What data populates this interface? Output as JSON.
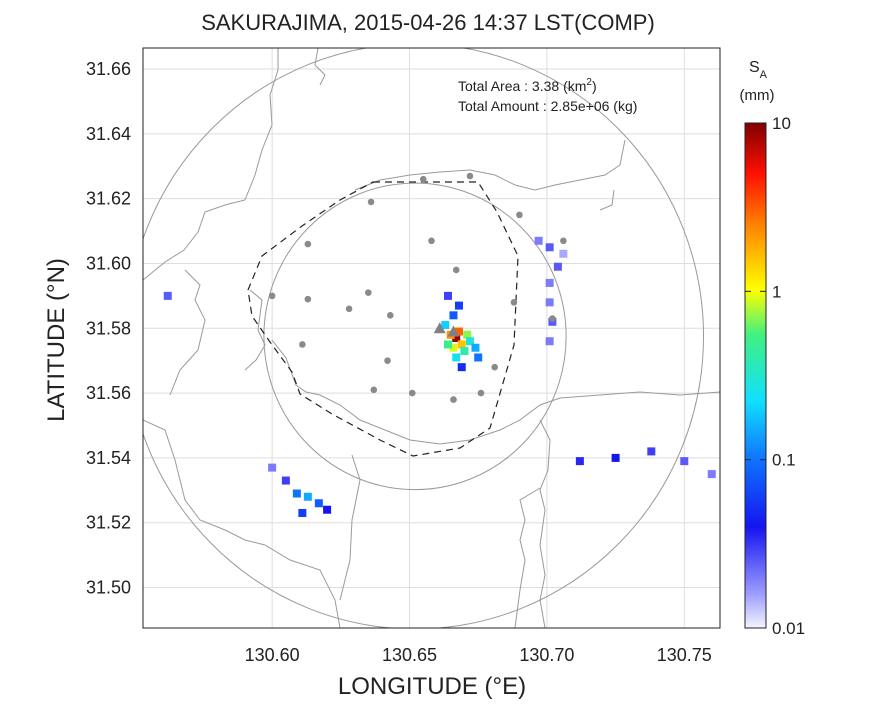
{
  "chart_data": {
    "type": "heatmap",
    "title": "SAKURAJIMA, 2015-04-26 14:37 LST(COMP)",
    "xlabel": "LONGITUDE (°E)",
    "ylabel": "LATITUDE (°N)",
    "xlim": [
      130.553,
      130.763
    ],
    "ylim": [
      31.4875,
      31.6665
    ],
    "xticks": [
      "130.60",
      "130.65",
      "130.70",
      "130.75"
    ],
    "yticks": [
      "31.50",
      "31.52",
      "31.54",
      "31.56",
      "31.58",
      "31.60",
      "31.62",
      "31.64",
      "31.66"
    ],
    "grid": true,
    "annotation": {
      "area_label": "Total Area   : 3.38 (km",
      "area_sup": "2",
      "area_close": ")",
      "amount_label": "Total Amount : 2.85e+06 (kg)"
    },
    "colorbar": {
      "label_main": "S",
      "label_sub": "A",
      "label_unit": "(mm)",
      "scale": "log",
      "range": [
        0.01,
        10
      ],
      "ticks": [
        "10",
        "1",
        "0.1",
        "0.01"
      ],
      "ticks_values": [
        10,
        1,
        0.1,
        0.01
      ]
    },
    "range_rings": [
      {
        "center": [
          130.652,
          31.5775
        ],
        "radius_deg": 0.055
      },
      {
        "center": [
          130.652,
          31.5775
        ],
        "radius_deg": 0.105
      }
    ],
    "stations": [
      [
        130.655,
        31.626
      ],
      [
        130.672,
        31.627
      ],
      [
        130.636,
        31.619
      ],
      [
        130.69,
        31.615
      ],
      [
        130.613,
        31.606
      ],
      [
        130.658,
        31.607
      ],
      [
        130.706,
        31.607
      ],
      [
        130.667,
        31.598
      ],
      [
        130.6,
        31.59
      ],
      [
        130.613,
        31.589
      ],
      [
        130.635,
        31.591
      ],
      [
        130.628,
        31.586
      ],
      [
        130.643,
        31.584
      ],
      [
        130.688,
        31.588
      ],
      [
        130.702,
        31.583
      ],
      [
        130.611,
        31.575
      ],
      [
        130.642,
        31.57
      ],
      [
        130.681,
        31.568
      ],
      [
        130.637,
        31.561
      ],
      [
        130.651,
        31.56
      ],
      [
        130.666,
        31.558
      ],
      [
        130.676,
        31.56
      ]
    ],
    "vents": [
      [
        130.661,
        31.58
      ],
      [
        130.666,
        31.579
      ]
    ],
    "deposits": [
      {
        "lon": 130.667,
        "lat": 31.577,
        "value": 9.0
      },
      {
        "lon": 130.668,
        "lat": 31.579,
        "value": 3.0
      },
      {
        "lon": 130.665,
        "lat": 31.578,
        "value": 2.2
      },
      {
        "lon": 130.669,
        "lat": 31.575,
        "value": 1.6
      },
      {
        "lon": 130.666,
        "lat": 31.574,
        "value": 0.9
      },
      {
        "lon": 130.671,
        "lat": 31.578,
        "value": 0.7
      },
      {
        "lon": 130.664,
        "lat": 31.575,
        "value": 0.5
      },
      {
        "lon": 130.67,
        "lat": 31.573,
        "value": 0.4
      },
      {
        "lon": 130.672,
        "lat": 31.576,
        "value": 0.3
      },
      {
        "lon": 130.667,
        "lat": 31.571,
        "value": 0.25
      },
      {
        "lon": 130.663,
        "lat": 31.581,
        "value": 0.2
      },
      {
        "lon": 130.674,
        "lat": 31.574,
        "value": 0.15
      },
      {
        "lon": 130.666,
        "lat": 31.584,
        "value": 0.08
      },
      {
        "lon": 130.668,
        "lat": 31.587,
        "value": 0.06
      },
      {
        "lon": 130.664,
        "lat": 31.59,
        "value": 0.03
      },
      {
        "lon": 130.669,
        "lat": 31.568,
        "value": 0.05
      },
      {
        "lon": 130.675,
        "lat": 31.571,
        "value": 0.1
      },
      {
        "lon": 130.701,
        "lat": 31.605,
        "value": 0.025
      },
      {
        "lon": 130.704,
        "lat": 31.599,
        "value": 0.025
      },
      {
        "lon": 130.701,
        "lat": 31.594,
        "value": 0.02
      },
      {
        "lon": 130.701,
        "lat": 31.588,
        "value": 0.02
      },
      {
        "lon": 130.702,
        "lat": 31.582,
        "value": 0.025
      },
      {
        "lon": 130.701,
        "lat": 31.576,
        "value": 0.02
      },
      {
        "lon": 130.697,
        "lat": 31.607,
        "value": 0.02
      },
      {
        "lon": 130.706,
        "lat": 31.603,
        "value": 0.015
      },
      {
        "lon": 130.6,
        "lat": 31.537,
        "value": 0.02
      },
      {
        "lon": 130.605,
        "lat": 31.533,
        "value": 0.03
      },
      {
        "lon": 130.609,
        "lat": 31.529,
        "value": 0.1
      },
      {
        "lon": 130.613,
        "lat": 31.528,
        "value": 0.15
      },
      {
        "lon": 130.617,
        "lat": 31.526,
        "value": 0.08
      },
      {
        "lon": 130.62,
        "lat": 31.524,
        "value": 0.04
      },
      {
        "lon": 130.611,
        "lat": 31.523,
        "value": 0.06
      },
      {
        "lon": 130.725,
        "lat": 31.54,
        "value": 0.04
      },
      {
        "lon": 130.712,
        "lat": 31.539,
        "value": 0.035
      },
      {
        "lon": 130.738,
        "lat": 31.542,
        "value": 0.03
      },
      {
        "lon": 130.75,
        "lat": 31.539,
        "value": 0.025
      },
      {
        "lon": 130.76,
        "lat": 31.535,
        "value": 0.02
      },
      {
        "lon": 130.562,
        "lat": 31.59,
        "value": 0.025
      }
    ]
  }
}
